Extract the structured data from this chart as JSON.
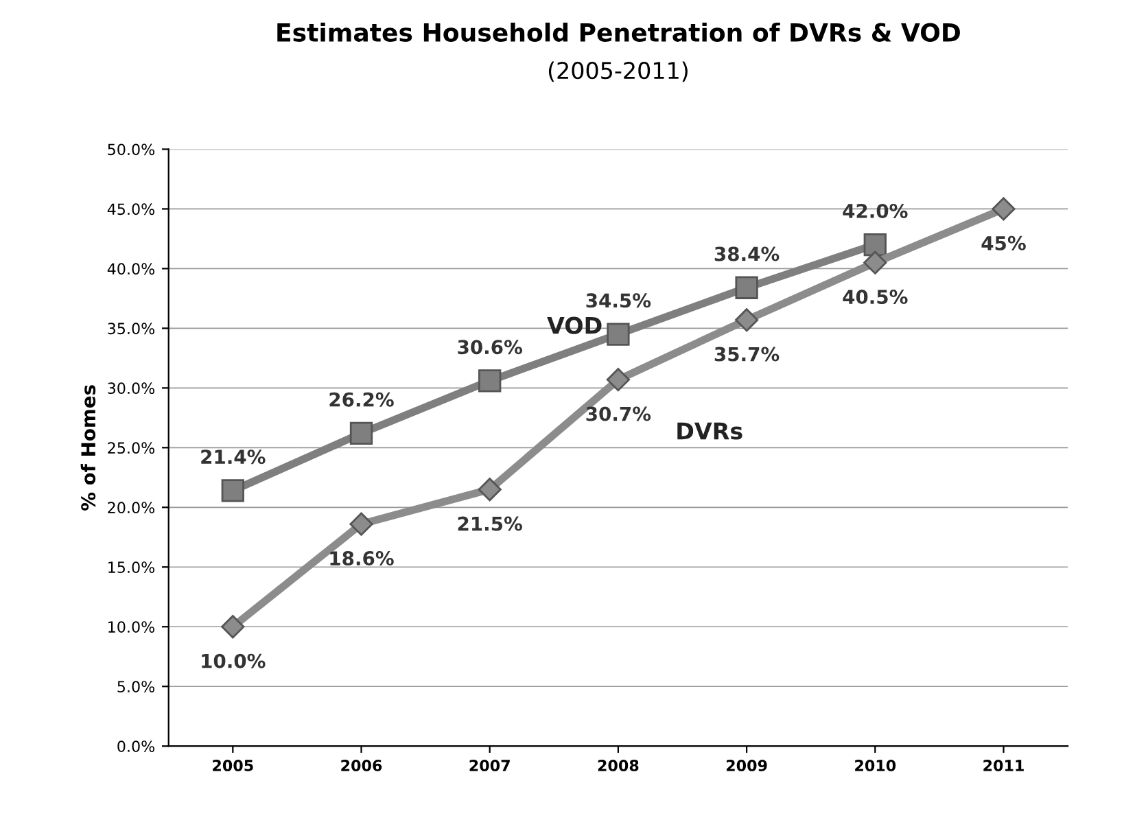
{
  "chart_data": {
    "type": "line",
    "title": "Estimates Household Penetration of DVRs & VOD",
    "subtitle": "(2005-2011)",
    "ylabel": "% of Homes",
    "categories": [
      "2005",
      "2006",
      "2007",
      "2008",
      "2009",
      "2010",
      "2011"
    ],
    "series": [
      {
        "name": "VOD",
        "color": "#7f7f7f",
        "marker": "square",
        "values": [
          21.4,
          26.2,
          30.6,
          34.5,
          38.4,
          42.0,
          null
        ],
        "value_labels": [
          "21.4%",
          "26.2%",
          "30.6%",
          "34.5%",
          "38.4%",
          "42.0%",
          null
        ]
      },
      {
        "name": "DVRs",
        "color": "#8c8c8c",
        "marker": "diamond",
        "values": [
          10.0,
          18.6,
          21.5,
          30.7,
          35.7,
          40.5,
          45
        ],
        "value_labels": [
          "10.0%",
          "18.6%",
          "21.5%",
          "30.7%",
          "35.7%",
          "40.5%",
          "45%"
        ]
      }
    ],
    "ylim": [
      0,
      50
    ],
    "yticks": [
      {
        "value": 0,
        "label": "0.0%"
      },
      {
        "value": 5,
        "label": "5.0%"
      },
      {
        "value": 10,
        "label": "10.0%"
      },
      {
        "value": 15,
        "label": "15.0%"
      },
      {
        "value": 20,
        "label": "20.0%"
      },
      {
        "value": 25,
        "label": "25.0%"
      },
      {
        "value": 30,
        "label": "30.0%"
      },
      {
        "value": 35,
        "label": "35.0%"
      },
      {
        "value": 40,
        "label": "40.0%"
      },
      {
        "value": 45,
        "label": "45.0%"
      },
      {
        "value": 50,
        "label": "50.0%"
      }
    ],
    "grid": "y",
    "line_style": "solid",
    "legend": false
  }
}
